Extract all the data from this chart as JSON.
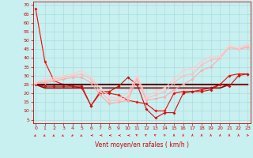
{
  "xlabel": "Vent moyen/en rafales ( km/h )",
  "background_color": "#c8f0f0",
  "grid_color": "#aadddd",
  "x_ticks": [
    0,
    1,
    2,
    3,
    4,
    5,
    6,
    7,
    8,
    9,
    10,
    11,
    12,
    13,
    14,
    15,
    16,
    17,
    18,
    19,
    20,
    21,
    22,
    23
  ],
  "y_ticks": [
    5,
    10,
    15,
    20,
    25,
    30,
    35,
    40,
    45,
    50,
    55,
    60,
    65,
    70
  ],
  "ylim": [
    3,
    72
  ],
  "xlim": [
    -0.3,
    23.3
  ],
  "series": [
    {
      "y": [
        68,
        38,
        27,
        25,
        24,
        23,
        13,
        20,
        20,
        19,
        16,
        15,
        14,
        10,
        10,
        20,
        21,
        21,
        22,
        23,
        25,
        30,
        31,
        31
      ],
      "color": "#ff0000",
      "lw": 0.8,
      "marker": "D",
      "ms": 2.0
    },
    {
      "y": [
        25,
        25,
        25,
        25,
        25,
        25,
        25,
        25,
        25,
        25,
        25,
        25,
        25,
        25,
        25,
        25,
        25,
        25,
        25,
        25,
        25,
        25,
        25,
        25
      ],
      "color": "#550000",
      "lw": 1.5,
      "marker": null,
      "ms": 0
    },
    {
      "y": [
        25,
        23,
        23,
        23,
        23,
        23,
        23,
        23,
        23,
        23,
        23,
        23,
        23,
        23,
        23,
        23,
        23,
        23,
        23,
        23,
        23,
        25,
        25,
        25
      ],
      "color": "#880000",
      "lw": 1.2,
      "marker": null,
      "ms": 0
    },
    {
      "y": [
        25,
        24,
        24,
        24,
        24,
        24,
        13,
        21,
        21,
        24,
        29,
        25,
        11,
        6,
        9,
        9,
        20,
        21,
        21,
        22,
        25,
        24,
        30,
        31
      ],
      "color": "#cc1111",
      "lw": 0.8,
      "marker": "D",
      "ms": 2.0
    },
    {
      "y": [
        26,
        26,
        27,
        28,
        29,
        29,
        26,
        19,
        14,
        15,
        16,
        28,
        16,
        17,
        18,
        22,
        25,
        28,
        33,
        35,
        40,
        46,
        45,
        46
      ],
      "color": "#ffaaaa",
      "lw": 0.8,
      "marker": "D",
      "ms": 2.0
    },
    {
      "y": [
        26,
        27,
        28,
        29,
        30,
        31,
        28,
        21,
        16,
        16,
        18,
        29,
        17,
        19,
        21,
        26,
        30,
        31,
        36,
        39,
        40,
        46,
        45,
        47
      ],
      "color": "#ffbbbb",
      "lw": 0.8,
      "marker": "D",
      "ms": 2.0
    },
    {
      "y": [
        26,
        28,
        29,
        30,
        31,
        33,
        29,
        23,
        18,
        17,
        20,
        30,
        18,
        21,
        23,
        28,
        33,
        34,
        38,
        41,
        41,
        47,
        46,
        48
      ],
      "color": "#ffcccc",
      "lw": 0.8,
      "marker": "D",
      "ms": 2.0
    }
  ],
  "wind_arrows": {
    "x": [
      0,
      1,
      2,
      3,
      4,
      5,
      6,
      7,
      8,
      9,
      10,
      11,
      12,
      13,
      14,
      15,
      16,
      17,
      18,
      19,
      20,
      21,
      22,
      23
    ],
    "angles": [
      225,
      225,
      225,
      225,
      210,
      225,
      270,
      270,
      270,
      270,
      270,
      315,
      315,
      315,
      330,
      0,
      0,
      0,
      0,
      0,
      0,
      0,
      0,
      345
    ],
    "color": "#ff0000"
  }
}
